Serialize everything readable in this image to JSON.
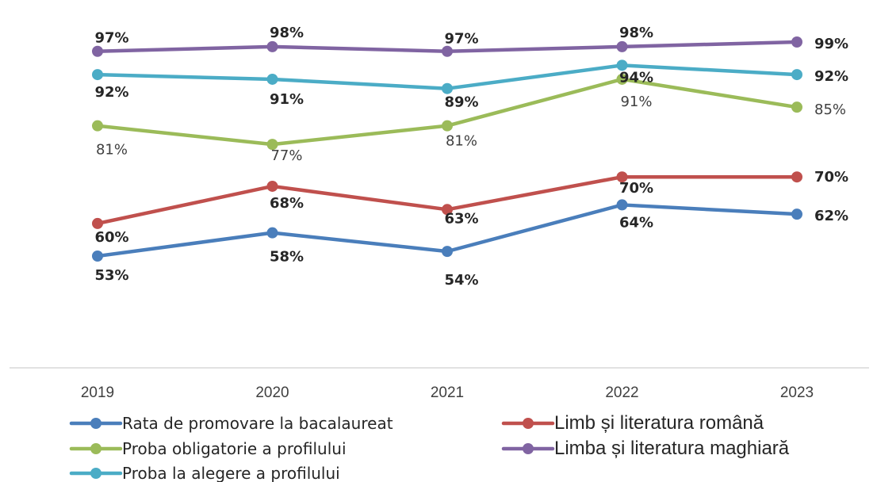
{
  "chart_data": {
    "type": "line",
    "title": "",
    "xlabel": "",
    "ylabel": "",
    "categories": [
      "2019",
      "2020",
      "2021",
      "2022",
      "2023"
    ],
    "ylim": [
      45,
      100
    ],
    "grid": false,
    "legend_position": "bottom",
    "series": [
      {
        "name": "Rata de promovare la bacalaureat",
        "color": "#4a7ebb",
        "values": [
          53,
          58,
          54,
          64,
          62
        ],
        "labels": [
          "53%",
          "58%",
          "54%",
          "64%",
          "62%"
        ],
        "label_style": "bold"
      },
      {
        "name": "Limb și literatura română",
        "color": "#c0504d",
        "values": [
          60,
          68,
          63,
          70,
          70
        ],
        "labels": [
          "60%",
          "68%",
          "63%",
          "70%",
          "70%"
        ],
        "label_style": "bold"
      },
      {
        "name": "Proba obligatorie a profilului",
        "color": "#9bbb59",
        "values": [
          81,
          77,
          81,
          91,
          85
        ],
        "labels": [
          "81%",
          "77%",
          "81%",
          "91%",
          "85%"
        ],
        "label_style": "plain"
      },
      {
        "name": "Limba și literatura maghiară",
        "color": "#8064a2",
        "values": [
          97,
          98,
          97,
          98,
          99
        ],
        "labels": [
          "97%",
          "98%",
          "97%",
          "98%",
          "99%"
        ],
        "label_style": "bold"
      },
      {
        "name": "Proba la alegere a profilului",
        "color": "#4bacc6",
        "values": [
          92,
          91,
          89,
          94,
          92
        ],
        "labels": [
          "92%",
          "91%",
          "89%",
          "94%",
          "92%"
        ],
        "label_style": "bold"
      }
    ]
  }
}
